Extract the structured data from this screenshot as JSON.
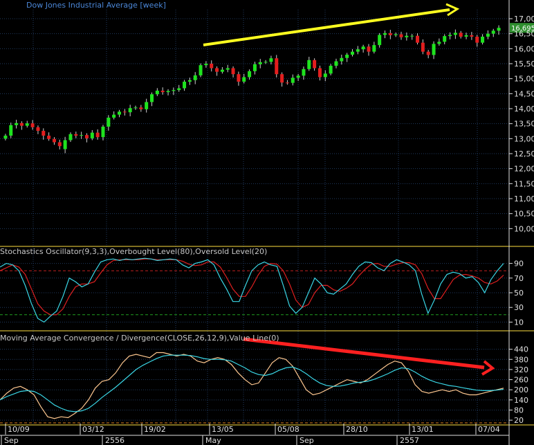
{
  "colors": {
    "background": "#000000",
    "grid": "#1f3a5f",
    "axis": "#e0e0e0",
    "up_candle": "#1ee31e",
    "down_candle": "#e31e1e",
    "wick": "#cfcfcf",
    "stoch_k": "#3ad7e6",
    "stoch_d": "#e02020",
    "overbought": "#c02020",
    "oversold": "#20a020",
    "macd_line": "#ffc890",
    "signal_line": "#3ad7e6",
    "separator": "#ffe040",
    "trend_up": "#ffff20",
    "trend_down": "#ff2020",
    "last_price_box": "#2f8f2f"
  },
  "chart_data": [
    {
      "type": "candlestick",
      "title": "Dow Jones Industrial Average [week]",
      "ylim": [
        9500,
        17300
      ],
      "yticks": [
        "17,00",
        "16,50",
        "16,00",
        "15,50",
        "15,00",
        "14,50",
        "14,00",
        "13,50",
        "13,00",
        "12,50",
        "12,00",
        "11,50",
        "11,00",
        "10,50",
        "10,00"
      ],
      "ytick_values": [
        17000,
        16500,
        16000,
        15500,
        15000,
        14500,
        14000,
        13500,
        13000,
        12500,
        12000,
        11500,
        11000,
        10500,
        10000
      ],
      "last_price_label": "16,695.",
      "last_price": 16695,
      "closes": [
        13100,
        13450,
        13520,
        13430,
        13510,
        13380,
        13260,
        13100,
        12990,
        12880,
        12750,
        12950,
        13150,
        13100,
        13120,
        13010,
        13200,
        13050,
        13400,
        13700,
        13800,
        13900,
        13880,
        14020,
        14040,
        13980,
        14220,
        14480,
        14600,
        14550,
        14590,
        14620,
        14680,
        14900,
        14950,
        15110,
        15450,
        15500,
        15350,
        15230,
        15300,
        15350,
        15150,
        14900,
        15050,
        15250,
        15480,
        15550,
        15560,
        15680,
        15150,
        14870,
        14860,
        15030,
        15100,
        15320,
        15620,
        15350,
        15050,
        15170,
        15430,
        15580,
        15690,
        15800,
        15900,
        15980,
        16070,
        15900,
        16120,
        16460,
        16520,
        16450,
        16480,
        16380,
        16430,
        16430,
        16200,
        15900,
        15790,
        16160,
        16230,
        16420,
        16460,
        16530,
        16400,
        16450,
        16400,
        16200,
        16400,
        16500,
        16600,
        16695
      ],
      "opens": [
        13000,
        13100,
        13450,
        13520,
        13430,
        13510,
        13380,
        13260,
        13100,
        12990,
        12880,
        12650,
        12950,
        13150,
        13100,
        13120,
        13010,
        13200,
        13050,
        13400,
        13700,
        13800,
        13900,
        13880,
        14020,
        14040,
        13980,
        14220,
        14480,
        14600,
        14550,
        14590,
        14620,
        14680,
        14900,
        14950,
        15110,
        15450,
        15500,
        15350,
        15230,
        15300,
        15350,
        15150,
        14900,
        15050,
        15250,
        15480,
        15550,
        15560,
        15680,
        15150,
        14870,
        14860,
        15030,
        15100,
        15320,
        15620,
        15350,
        15050,
        15170,
        15430,
        15580,
        15690,
        15800,
        15900,
        15980,
        16070,
        15900,
        16120,
        16460,
        16520,
        16450,
        16480,
        16380,
        16430,
        16430,
        16200,
        15900,
        15790,
        16160,
        16230,
        16420,
        16460,
        16530,
        16400,
        16450,
        16400,
        16200,
        16400,
        16500,
        16600
      ]
    },
    {
      "type": "line",
      "title": "Stochastics Oscillator(9,3,3),Overbought Level(80),Oversold Level(20)",
      "ylim": [
        0,
        100
      ],
      "yticks": [
        "90",
        "70",
        "50",
        "30",
        "10"
      ],
      "ytick_values": [
        90,
        70,
        50,
        30,
        10
      ],
      "levels": [
        80,
        20
      ],
      "series": [
        {
          "values": [
            85,
            90,
            88,
            80,
            60,
            35,
            15,
            10,
            18,
            25,
            45,
            70,
            65,
            58,
            62,
            78,
            92,
            95,
            96,
            94,
            96,
            95,
            96,
            97,
            96,
            94,
            95,
            96,
            95,
            88,
            84,
            90,
            92,
            95,
            88,
            70,
            55,
            38,
            38,
            60,
            80,
            88,
            92,
            88,
            86,
            60,
            32,
            22,
            30,
            50,
            70,
            62,
            50,
            48,
            55,
            62,
            75,
            86,
            92,
            91,
            84,
            80,
            90,
            95,
            92,
            88,
            80,
            48,
            22,
            40,
            62,
            75,
            78,
            76,
            70,
            72,
            64,
            50,
            68,
            80,
            90
          ]
        },
        {
          "values": [
            80,
            84,
            88,
            85,
            75,
            55,
            35,
            25,
            20,
            20,
            28,
            45,
            58,
            62,
            62,
            65,
            77,
            88,
            94,
            95,
            95,
            95,
            95,
            96,
            96,
            95,
            95,
            95,
            95,
            93,
            89,
            87,
            88,
            92,
            92,
            85,
            71,
            55,
            45,
            45,
            58,
            74,
            86,
            90,
            89,
            80,
            62,
            40,
            30,
            34,
            50,
            60,
            60,
            54,
            52,
            56,
            62,
            73,
            82,
            89,
            90,
            86,
            86,
            89,
            91,
            91,
            88,
            76,
            56,
            42,
            42,
            55,
            68,
            74,
            75,
            73,
            70,
            64,
            62,
            66,
            74
          ]
        }
      ]
    },
    {
      "type": "line",
      "title": "Moving Average Convergence / Divergence(CLOSE,26,12,9),Value Line(0)",
      "ylim": [
        0,
        500
      ],
      "yticks": [
        "440",
        "380",
        "320",
        "260",
        "200",
        "140",
        "80",
        "20"
      ],
      "ytick_values": [
        440,
        380,
        320,
        260,
        200,
        140,
        80,
        20
      ],
      "series": [
        {
          "values": [
            140,
            180,
            210,
            220,
            200,
            170,
            100,
            40,
            30,
            40,
            35,
            60,
            90,
            140,
            210,
            250,
            260,
            300,
            360,
            400,
            410,
            400,
            390,
            420,
            420,
            410,
            400,
            410,
            400,
            370,
            360,
            380,
            390,
            380,
            350,
            300,
            260,
            230,
            240,
            300,
            360,
            390,
            380,
            340,
            270,
            200,
            170,
            180,
            200,
            220,
            240,
            260,
            250,
            240,
            260,
            290,
            320,
            350,
            370,
            360,
            310,
            230,
            190,
            180,
            190,
            200,
            190,
            200,
            180,
            170,
            170,
            180,
            190,
            200,
            210
          ]
        },
        {
          "values": [
            140,
            160,
            175,
            190,
            195,
            190,
            170,
            140,
            110,
            90,
            75,
            70,
            75,
            90,
            120,
            155,
            185,
            215,
            250,
            285,
            320,
            345,
            365,
            385,
            400,
            405,
            405,
            405,
            403,
            395,
            385,
            380,
            380,
            378,
            370,
            350,
            330,
            305,
            290,
            285,
            295,
            315,
            330,
            335,
            320,
            295,
            265,
            240,
            225,
            220,
            222,
            230,
            240,
            245,
            250,
            262,
            278,
            295,
            315,
            330,
            325,
            305,
            280,
            260,
            245,
            235,
            225,
            220,
            212,
            205,
            198,
            195,
            195,
            198,
            203
          ]
        }
      ]
    }
  ],
  "xaxis": {
    "date_labels": [
      "10/09",
      "03/12",
      "19/02",
      "13/05",
      "05/08",
      "28/10",
      "13/01",
      "07/04"
    ],
    "era_labels": [
      "Sep",
      "2556",
      "May",
      "Sep",
      "2557"
    ]
  }
}
